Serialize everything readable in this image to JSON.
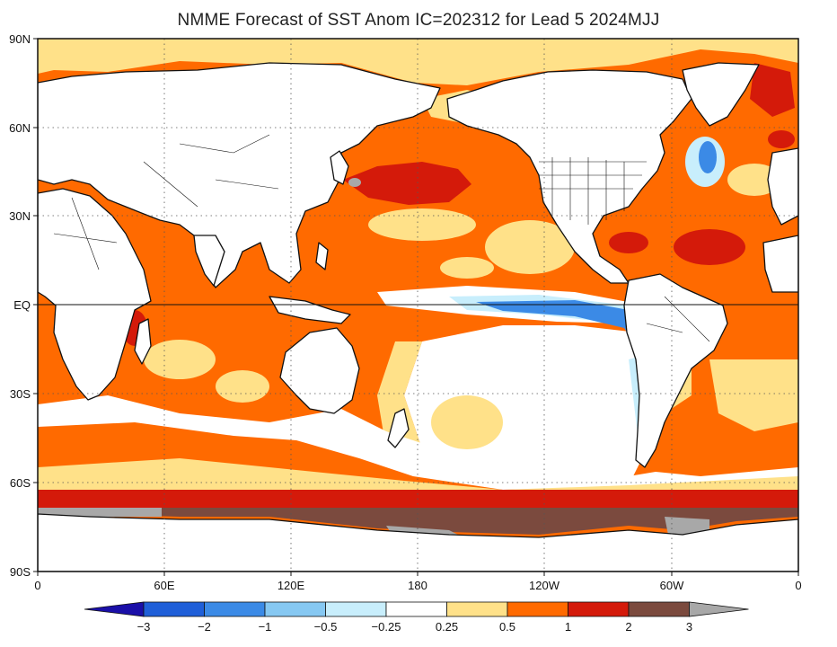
{
  "title": "NMME Forecast of SST Anom IC=202312 for Lead 5 2024MJJ",
  "lat_ticks": [
    "90N",
    "60N",
    "30N",
    "EQ",
    "30S",
    "60S",
    "90S"
  ],
  "lon_ticks": [
    "0",
    "60E",
    "120E",
    "180",
    "120W",
    "60W",
    "0"
  ],
  "colorbar": {
    "labels": [
      "-3",
      "-2",
      "-1",
      "-0.5",
      "-0.25",
      "0.25",
      "0.5",
      "1",
      "2",
      "3"
    ],
    "colors": [
      "#1a0fa8",
      "#1f5fd8",
      "#3b8ae6",
      "#86c8f2",
      "#c8eefc",
      "#ffffff",
      "#ffe189",
      "#ff6a00",
      "#d41a0a",
      "#7b4a3e",
      "#a8a8a8"
    ]
  },
  "palette": {
    "ocean_base": "#ff6a00",
    "light_positive": "#ffe189",
    "near_zero": "#ffffff",
    "strong_positive": "#d41a0a",
    "very_strong": "#7b4a3e",
    "extreme": "#a8a8a8",
    "cool_light": "#c8eefc",
    "cool_mid": "#3b8ae6",
    "land": "#ffffff"
  }
}
